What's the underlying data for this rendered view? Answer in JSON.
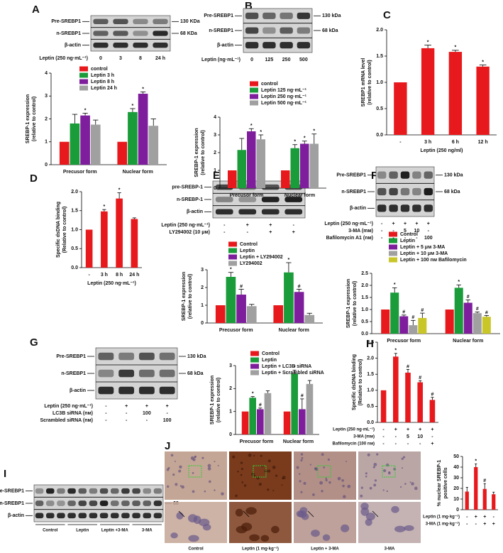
{
  "panels": [
    "A",
    "B",
    "C",
    "D",
    "E",
    "F",
    "G",
    "H",
    "I",
    "J"
  ],
  "chart_data": [
    {
      "type": "bar",
      "categories": [
        "Precusor form",
        "Nuclear form"
      ],
      "ylabel": [
        "SREBP-1 expression",
        "(relative to control)"
      ],
      "ylim": [
        0,
        4
      ],
      "yticks": [
        0,
        1,
        2,
        3,
        4
      ],
      "series": [
        {
          "name": "control",
          "color": "#e8191c",
          "values": [
            1,
            1
          ],
          "errors": [
            null,
            null
          ],
          "marks": [
            null,
            null
          ]
        },
        {
          "name": "Leptin 3 h",
          "color": "#1a9c3a",
          "values": [
            1.8,
            2.3
          ],
          "errors": [
            0.4,
            0.15
          ],
          "marks": [
            null,
            "*"
          ]
        },
        {
          "name": "Leptin 8 h",
          "color": "#7e1e9c",
          "values": [
            2.15,
            3.1
          ],
          "errors": [
            0.1,
            0.08
          ],
          "marks": [
            "*",
            "*"
          ]
        },
        {
          "name": "Leptin 24 h",
          "color": "#a0a0a0",
          "values": [
            1.75,
            1.7
          ],
          "errors": [
            0.2,
            0.3
          ],
          "marks": [
            null,
            null
          ]
        }
      ]
    },
    {
      "type": "bar",
      "categories": [
        "Precusor form",
        "Nuclear form"
      ],
      "ylabel": [
        "SREBP-1 expression",
        "(relative to control)"
      ],
      "ylim": [
        0,
        4
      ],
      "yticks": [
        0,
        1,
        2,
        3,
        4
      ],
      "series": [
        {
          "name": "control",
          "color": "#e8191c",
          "values": [
            1,
            1
          ],
          "errors": [
            null,
            null
          ],
          "marks": [
            null,
            null
          ]
        },
        {
          "name": "Leptin 125 ng·mL⁻¹",
          "color": "#1a9c3a",
          "values": [
            2.15,
            2.25
          ],
          "errors": [
            0.65,
            0.2
          ],
          "marks": [
            null,
            "*"
          ]
        },
        {
          "name": "Leptin 250 ng·mL⁻¹",
          "color": "#7e1e9c",
          "values": [
            3.2,
            2.5
          ],
          "errors": [
            0.15,
            0.15
          ],
          "marks": [
            "*",
            "*"
          ]
        },
        {
          "name": "Leptin 500 ng·mL⁻¹",
          "color": "#a0a0a0",
          "values": [
            2.75,
            2.5
          ],
          "errors": [
            0.25,
            0.55
          ],
          "marks": [
            "*",
            "*"
          ]
        }
      ]
    },
    {
      "type": "bar",
      "categories": [
        "-",
        "3 h",
        "6 h",
        "12 h"
      ],
      "xlabel": "Leptin (250 ng/ml)",
      "ylabel": [
        "SREBP1 mRNA level",
        "(relative to control)"
      ],
      "ylim": [
        0,
        2
      ],
      "yticks": [
        {
          "value": 0,
          "label": "0.0"
        },
        {
          "value": 0.5,
          "label": "0.5"
        },
        {
          "value": 1,
          "label": "1.0"
        },
        {
          "value": 1.5,
          "label": "1.5"
        },
        {
          "value": 2,
          "label": "2.0"
        }
      ],
      "color": "#e8191c",
      "values": [
        1,
        1.65,
        1.58,
        1.3
      ],
      "errors": [
        null,
        0.06,
        0.03,
        0.03
      ],
      "marks": [
        null,
        "*",
        "*",
        "*"
      ]
    },
    {
      "type": "bar",
      "categories": [
        "-",
        "3 h",
        "8 h",
        "24 h"
      ],
      "xlabel": "Leptin (250 ng·mL⁻¹)",
      "ylabel": [
        "Specific dsDNA binding",
        "(Relative to control)"
      ],
      "ylim": [
        0,
        2
      ],
      "yticks": [
        {
          "value": 0,
          "label": "0.0"
        },
        {
          "value": 0.5,
          "label": "0.5"
        },
        {
          "value": 1,
          "label": "1.0"
        },
        {
          "value": 1.5,
          "label": "1.5"
        },
        {
          "value": 2,
          "label": "2.0"
        }
      ],
      "color": "#e8191c",
      "values": [
        1,
        1.48,
        1.82,
        1.28
      ],
      "errors": [
        null,
        0.05,
        0.15,
        0.03
      ],
      "marks": [
        null,
        "*",
        "*",
        null
      ]
    },
    {
      "type": "bar",
      "categories": [
        "Precusor form",
        "Nuclear form"
      ],
      "ylabel": [
        "SREBP-1 expression",
        "(relative to control)"
      ],
      "ylim": [
        0,
        3
      ],
      "yticks": [
        0,
        1,
        2,
        3
      ],
      "series": [
        {
          "name": "Control",
          "color": "#e8191c",
          "values": [
            1,
            1
          ],
          "errors": [
            null,
            null
          ],
          "marks": [
            null,
            null
          ]
        },
        {
          "name": "Leptin",
          "color": "#1a9c3a",
          "values": [
            2.6,
            2.85
          ],
          "errors": [
            0.25,
            0.55
          ],
          "marks": [
            "*",
            "*"
          ]
        },
        {
          "name": "Leptin + LY294002",
          "color": "#7e1e9c",
          "values": [
            1.6,
            1.75
          ],
          "errors": [
            0.3,
            0.15
          ],
          "marks": [
            "#",
            "#"
          ]
        },
        {
          "name": "LY294002",
          "color": "#a0a0a0",
          "values": [
            0.95,
            0.45
          ],
          "errors": [
            0.1,
            0.1
          ],
          "marks": [
            null,
            null
          ]
        }
      ]
    },
    {
      "type": "bar",
      "categories": [
        "Precusor form",
        "Nuclear form"
      ],
      "ylabel": [
        "SREBP-1 expression",
        "(relative to control)"
      ],
      "ylim": [
        0,
        2.5
      ],
      "yticks": [
        {
          "value": 0,
          "label": "0.0"
        },
        {
          "value": 0.5,
          "label": "0.5"
        },
        {
          "value": 1,
          "label": "1.0"
        },
        {
          "value": 1.5,
          "label": "1.5"
        },
        {
          "value": 2,
          "label": "2.0"
        },
        {
          "value": 2.5,
          "label": "2.5"
        }
      ],
      "series": [
        {
          "name": "Control",
          "color": "#e8191c",
          "values": [
            1,
            1
          ],
          "errors": [
            null,
            null
          ],
          "marks": [
            null,
            null
          ]
        },
        {
          "name": "Leptin",
          "color": "#1a9c3a",
          "values": [
            1.7,
            1.9
          ],
          "errors": [
            0.2,
            0.12
          ],
          "marks": [
            "*",
            "*"
          ]
        },
        {
          "name": "Leptin + 5 μм 3-MA",
          "color": "#7e1e9c",
          "values": [
            0.72,
            1.28
          ],
          "errors": [
            0.05,
            0.12
          ],
          "marks": [
            "#",
            "#"
          ]
        },
        {
          "name": "Leptin + 10 μм 3-MA",
          "color": "#a0a0a0",
          "values": [
            0.35,
            0.85
          ],
          "errors": [
            0.2,
            0.05
          ],
          "marks": [
            "#",
            "#"
          ]
        },
        {
          "name": "Leptin + 100 nм Bafilomycin",
          "color": "#c9c62a",
          "values": [
            0.65,
            0.7
          ],
          "errors": [
            0.2,
            0.05
          ],
          "marks": [
            "#",
            "#"
          ]
        }
      ]
    },
    {
      "type": "bar",
      "categories": [
        "Precusor form",
        "Nuclear form"
      ],
      "ylabel": [
        "SREBP-1 expression",
        "(relative to control)"
      ],
      "ylim": [
        0,
        3
      ],
      "yticks": [
        0,
        1,
        2,
        3
      ],
      "series": [
        {
          "name": "Control",
          "color": "#e8191c",
          "values": [
            1,
            1
          ],
          "errors": [
            null,
            null
          ],
          "marks": [
            null,
            null
          ]
        },
        {
          "name": "Leptin",
          "color": "#1a9c3a",
          "values": [
            1.6,
            2.65
          ],
          "errors": [
            0.05,
            0.15
          ],
          "marks": [
            "*",
            "*"
          ]
        },
        {
          "name": "Leptin + LC3B siRNA",
          "color": "#7e1e9c",
          "values": [
            1.1,
            1.1
          ],
          "errors": [
            0.05,
            0.45
          ],
          "marks": [
            "#",
            "#"
          ]
        },
        {
          "name": "Leptin + Scrambled siRNA",
          "color": "#a0a0a0",
          "values": [
            1.8,
            2.2
          ],
          "errors": [
            0.1,
            0.15
          ],
          "marks": [
            null,
            null
          ]
        }
      ]
    },
    {
      "type": "bar",
      "categories": [
        null,
        null,
        null,
        null,
        null
      ],
      "ylabel": [
        "Specific dsDNA binding",
        "(Relative to control)"
      ],
      "ylim": [
        0,
        2.5
      ],
      "yticks": [
        {
          "value": 0,
          "label": "0.0"
        },
        {
          "value": 0.5,
          "label": "0.5"
        },
        {
          "value": 1,
          "label": "1.0"
        },
        {
          "value": 1.5,
          "label": "1.5"
        },
        {
          "value": 2,
          "label": "2.0"
        },
        {
          "value": 2.5,
          "label": "2.5"
        }
      ],
      "color": "#e8191c",
      "values": [
        1,
        2.05,
        1.55,
        1.25,
        0.7
      ],
      "errors": [
        null,
        0.1,
        0.1,
        0.05,
        0.08
      ],
      "marks": [
        null,
        "*",
        "#",
        "#",
        "#"
      ],
      "condition_rows": [
        {
          "label": "Leptin (250 ng·mL⁻¹)",
          "cells": [
            "-",
            "+",
            "+",
            "+",
            "+"
          ]
        },
        {
          "label": "3-MA (mм)",
          "cells": [
            "-",
            "-",
            "5",
            "10",
            "-"
          ]
        },
        {
          "label": "Bafilomycin (100 nм)",
          "cells": [
            "-",
            "-",
            "-",
            "-",
            "+"
          ]
        }
      ]
    },
    {
      "type": "bar",
      "categories": [
        null,
        null,
        null,
        null
      ],
      "ylabel": [
        "% nuclear SREBP-1",
        "positive cells"
      ],
      "ylim": [
        0,
        50
      ],
      "yticks": [
        0,
        10,
        20,
        30,
        40,
        50
      ],
      "color": "#e8191c",
      "values": [
        17,
        40,
        19.5,
        14.5
      ],
      "errors": [
        4,
        3,
        5,
        2
      ],
      "marks": [
        null,
        "*",
        "#",
        null
      ],
      "condition_rows": [
        {
          "label": "Leptin (1 mg·kg⁻¹)",
          "cells": [
            "-",
            "+",
            "+",
            "-"
          ]
        },
        {
          "label": "3-MA (1 mg·kg⁻¹)",
          "cells": [
            "-",
            "-",
            "+",
            "+"
          ]
        }
      ]
    }
  ],
  "blots": [
    {
      "rows": [
        "Pre-SREBP1",
        "n-SREBP1",
        "β-actin"
      ],
      "sizes": [
        "130 KDa",
        "68 KDa"
      ],
      "lane_rows": [
        {
          "label": "Leptin (250 ng·mL⁻¹)",
          "cells": [
            "0",
            "3",
            "8",
            "24 h"
          ]
        }
      ]
    },
    {
      "rows": [
        "Pre-SREBP1",
        "n-SREBP1",
        "β-actin"
      ],
      "sizes": [
        "130 kDa",
        "68 kDa"
      ],
      "lane_rows": [
        {
          "label": "Leptin (ng·mL⁻¹)",
          "cells": [
            "0",
            "125",
            "250",
            "500"
          ]
        }
      ]
    },
    {
      "rows": [
        "pre-SREBP-1",
        "n-SREBP-1",
        "β-actin"
      ],
      "sizes": [],
      "lane_rows": [
        {
          "label": "Leptin (250 ng·mL⁻¹)",
          "cells": [
            "-",
            "+",
            "+",
            "-"
          ]
        },
        {
          "label": "LY294002 (10 μм)",
          "cells": [
            "-",
            "-",
            "+",
            "+"
          ]
        }
      ]
    },
    {
      "rows": [
        "Pre-SREBP1",
        "n-SREBP1",
        "β-actin"
      ],
      "sizes": [
        "130 kDa",
        "68 kDa"
      ],
      "lane_rows": [
        {
          "label": "Leptin (250 ng·mL⁻¹)",
          "cells": [
            "-",
            "+",
            "+",
            "+",
            "+"
          ]
        },
        {
          "label": "3-MA (mм)",
          "cells": [
            "-",
            "-",
            "5",
            "10",
            "-"
          ]
        },
        {
          "label": "Bafilomycin A1 (nм)",
          "cells": [
            "-",
            "-",
            "-",
            "-",
            "100"
          ]
        }
      ]
    },
    {
      "rows": [
        "Pre-SREBP1",
        "n-SREBP1",
        "β-actin"
      ],
      "sizes": [
        "130 kDa",
        "68 kDa"
      ],
      "lane_rows": [
        {
          "label": "Leptin (250 ng·mL⁻¹)",
          "cells": [
            "-",
            "+",
            "+",
            "+"
          ]
        },
        {
          "label": "LC3B siRNA (nм)",
          "cells": [
            "-",
            "-",
            "100",
            "-"
          ]
        },
        {
          "label": "Scrambled siRNA (nм)",
          "cells": [
            "-",
            "-",
            "-",
            "100"
          ]
        }
      ]
    },
    {
      "rows": [
        "Pre-SREBP1",
        "n-SREBP1",
        "β-actin"
      ],
      "sizes": [
        "130",
        "68"
      ],
      "groups": [
        "Control",
        "Leptin",
        "Leptin +3-MA",
        "3-MA"
      ]
    }
  ],
  "images": {
    "captions": [
      "Control",
      "Leptin (1 mg·kg⁻¹)",
      "Leptin + 3-MA",
      "3-MA"
    ]
  }
}
